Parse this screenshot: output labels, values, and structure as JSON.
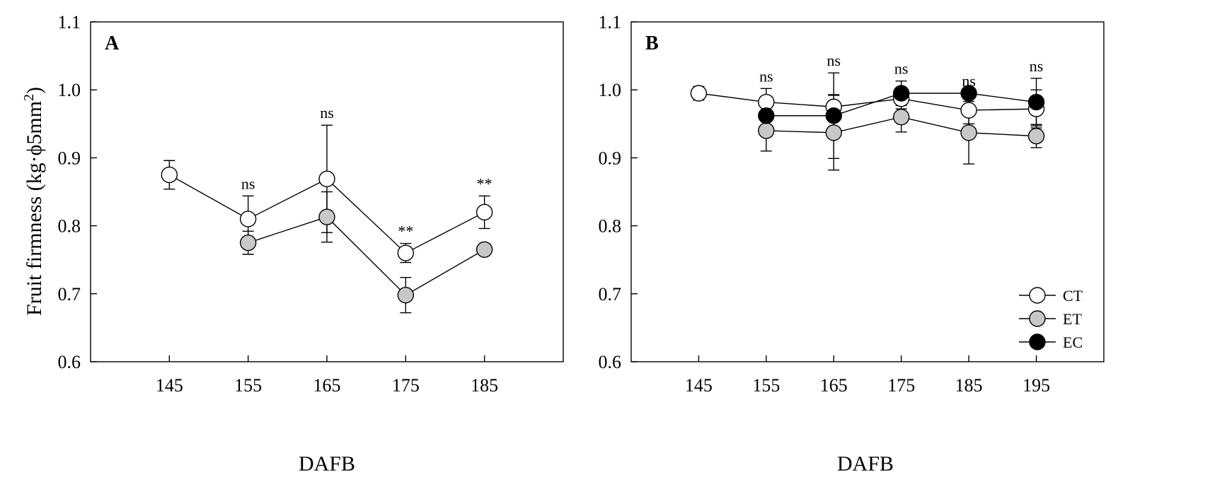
{
  "chart_data": [
    {
      "type": "line",
      "panel_label": "A",
      "xlabel": "DAFB",
      "ylabel_main": "Fruit firmness (kg·ϕ5mm",
      "ylabel_sup": "2",
      "ylabel_close": ")",
      "ylim": [
        0.6,
        1.1
      ],
      "xlim": [
        135,
        195
      ],
      "yticks": [
        "0.6",
        "0.7",
        "0.8",
        "0.9",
        "1.0",
        "1.1"
      ],
      "xticks": [
        "145",
        "155",
        "165",
        "175",
        "185"
      ],
      "series": [
        {
          "name": "CT",
          "color": "#ffffff",
          "x": [
            145,
            155,
            165,
            175,
            185
          ],
          "y": [
            0.875,
            0.81,
            0.869,
            0.76,
            0.82
          ],
          "err": [
            0.021,
            0.034,
            0.079,
            0.014,
            0.024
          ]
        },
        {
          "name": "ET",
          "color": "#c8c8c8",
          "x": [
            155,
            165,
            175,
            185
          ],
          "y": [
            0.775,
            0.813,
            0.698,
            0.765
          ],
          "err": [
            0.017,
            0.037,
            0.026,
            0.0
          ]
        }
      ],
      "annotations": [
        {
          "x": 155,
          "text": "ns"
        },
        {
          "x": 165,
          "text": "ns"
        },
        {
          "x": 175,
          "text": "**"
        },
        {
          "x": 185,
          "text": "**"
        }
      ]
    },
    {
      "type": "line",
      "panel_label": "B",
      "xlabel": "DAFB",
      "ylim": [
        0.6,
        1.1
      ],
      "xlim": [
        135,
        205
      ],
      "yticks": [
        "0.6",
        "0.7",
        "0.8",
        "0.9",
        "1.0",
        "1.1"
      ],
      "xticks": [
        "145",
        "155",
        "165",
        "175",
        "185",
        "195"
      ],
      "series": [
        {
          "name": "CT",
          "color": "#ffffff",
          "x": [
            145,
            155,
            165,
            175,
            185,
            195
          ],
          "y": [
            0.995,
            0.982,
            0.975,
            0.987,
            0.97,
            0.972
          ],
          "err": [
            0.01,
            0.02,
            0.018,
            0.015,
            0.02,
            0.028
          ]
        },
        {
          "name": "ET",
          "color": "#c8c8c8",
          "x": [
            155,
            165,
            175,
            185,
            195
          ],
          "y": [
            0.94,
            0.937,
            0.96,
            0.937,
            0.932
          ],
          "err": [
            0.03,
            0.055,
            0.022,
            0.046,
            0.017
          ]
        },
        {
          "name": "EC",
          "color": "#000000",
          "x": [
            155,
            165,
            175,
            185,
            195
          ],
          "y": [
            0.962,
            0.962,
            0.995,
            0.995,
            0.982
          ],
          "err": [
            0.0,
            0.063,
            0.018,
            0.0,
            0.035
          ]
        }
      ],
      "legend": {
        "position": "bottom-right",
        "entries": [
          "CT",
          "ET",
          "EC"
        ]
      },
      "annotations": [
        {
          "x": 155,
          "text": "ns"
        },
        {
          "x": 165,
          "text": "ns"
        },
        {
          "x": 175,
          "text": "ns"
        },
        {
          "x": 185,
          "text": "ns"
        },
        {
          "x": 195,
          "text": "ns"
        }
      ]
    }
  ]
}
